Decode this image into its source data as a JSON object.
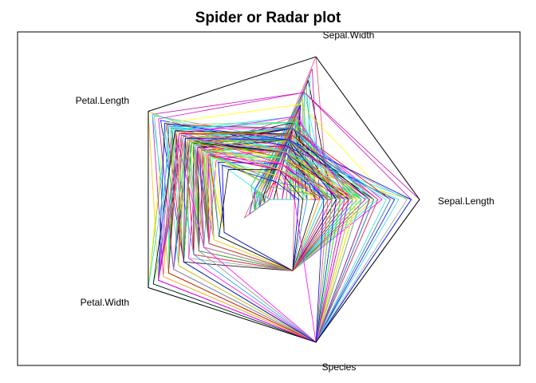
{
  "chart_data": {
    "type": "radar",
    "title": "Spider or Radar plot",
    "axes": [
      "Sepal.Length",
      "Sepal.Width",
      "Petal.Length",
      "Petal.Width",
      "Species"
    ],
    "scale": "each variable scaled from its minimum (center) to its maximum (outer pentagon)",
    "frame": true,
    "palette": [
      "#000000",
      "#DF536B",
      "#61D04F",
      "#2297E6",
      "#28E2E5",
      "#CD0BBC",
      "#F5C710",
      "#9E9E9E",
      "#FF00FF",
      "#0000FF",
      "#00FFFF",
      "#FFFF00",
      "#00FF00",
      "#FF0000"
    ],
    "series": [
      {
        "values": [
          5.1,
          3.5,
          1.4,
          0.2,
          1
        ]
      },
      {
        "values": [
          4.9,
          3.0,
          1.4,
          0.2,
          1
        ]
      },
      {
        "values": [
          4.7,
          3.2,
          1.3,
          0.2,
          1
        ]
      },
      {
        "values": [
          4.6,
          3.1,
          1.5,
          0.2,
          1
        ]
      },
      {
        "values": [
          5.0,
          3.6,
          1.4,
          0.2,
          1
        ]
      },
      {
        "values": [
          5.4,
          3.9,
          1.7,
          0.4,
          1
        ]
      },
      {
        "values": [
          4.6,
          3.4,
          1.4,
          0.3,
          1
        ]
      },
      {
        "values": [
          5.0,
          3.4,
          1.5,
          0.2,
          1
        ]
      },
      {
        "values": [
          4.4,
          2.9,
          1.4,
          0.2,
          1
        ]
      },
      {
        "values": [
          4.9,
          3.1,
          1.5,
          0.1,
          1
        ]
      },
      {
        "values": [
          5.4,
          3.7,
          1.5,
          0.2,
          1
        ]
      },
      {
        "values": [
          4.8,
          3.4,
          1.6,
          0.2,
          1
        ]
      },
      {
        "values": [
          4.8,
          3.0,
          1.4,
          0.1,
          1
        ]
      },
      {
        "values": [
          4.3,
          3.0,
          1.1,
          0.1,
          1
        ]
      },
      {
        "values": [
          5.8,
          4.0,
          1.2,
          0.2,
          1
        ]
      },
      {
        "values": [
          5.7,
          4.4,
          1.5,
          0.4,
          1
        ]
      },
      {
        "values": [
          5.4,
          3.9,
          1.3,
          0.4,
          1
        ]
      },
      {
        "values": [
          5.1,
          3.5,
          1.4,
          0.3,
          1
        ]
      },
      {
        "values": [
          5.7,
          3.8,
          1.7,
          0.3,
          1
        ]
      },
      {
        "values": [
          5.1,
          3.8,
          1.5,
          0.3,
          1
        ]
      },
      {
        "values": [
          5.4,
          3.4,
          1.7,
          0.2,
          1
        ]
      },
      {
        "values": [
          5.1,
          3.7,
          1.5,
          0.4,
          1
        ]
      },
      {
        "values": [
          4.6,
          3.6,
          1.0,
          0.2,
          1
        ]
      },
      {
        "values": [
          5.1,
          3.3,
          1.7,
          0.5,
          1
        ]
      },
      {
        "values": [
          4.8,
          3.4,
          1.9,
          0.2,
          1
        ]
      },
      {
        "values": [
          5.0,
          3.0,
          1.6,
          0.2,
          1
        ]
      },
      {
        "values": [
          5.0,
          3.4,
          1.6,
          0.4,
          1
        ]
      },
      {
        "values": [
          5.2,
          3.5,
          1.5,
          0.2,
          1
        ]
      },
      {
        "values": [
          5.2,
          3.4,
          1.4,
          0.2,
          1
        ]
      },
      {
        "values": [
          4.7,
          3.2,
          1.6,
          0.2,
          1
        ]
      },
      {
        "values": [
          4.8,
          3.1,
          1.6,
          0.2,
          1
        ]
      },
      {
        "values": [
          5.4,
          3.4,
          1.5,
          0.4,
          1
        ]
      },
      {
        "values": [
          5.2,
          4.1,
          1.5,
          0.1,
          1
        ]
      },
      {
        "values": [
          5.5,
          4.2,
          1.4,
          0.2,
          1
        ]
      },
      {
        "values": [
          4.9,
          3.1,
          1.5,
          0.2,
          1
        ]
      },
      {
        "values": [
          5.0,
          3.2,
          1.2,
          0.2,
          1
        ]
      },
      {
        "values": [
          5.5,
          3.5,
          1.3,
          0.2,
          1
        ]
      },
      {
        "values": [
          4.9,
          3.6,
          1.4,
          0.1,
          1
        ]
      },
      {
        "values": [
          4.4,
          3.0,
          1.3,
          0.2,
          1
        ]
      },
      {
        "values": [
          5.1,
          3.4,
          1.5,
          0.2,
          1
        ]
      },
      {
        "values": [
          5.0,
          3.5,
          1.3,
          0.3,
          1
        ]
      },
      {
        "values": [
          4.5,
          2.3,
          1.3,
          0.3,
          1
        ]
      },
      {
        "values": [
          4.4,
          3.2,
          1.3,
          0.2,
          1
        ]
      },
      {
        "values": [
          5.0,
          3.5,
          1.6,
          0.6,
          1
        ]
      },
      {
        "values": [
          5.1,
          3.8,
          1.9,
          0.4,
          1
        ]
      },
      {
        "values": [
          4.8,
          3.0,
          1.4,
          0.3,
          1
        ]
      },
      {
        "values": [
          5.1,
          3.8,
          1.6,
          0.2,
          1
        ]
      },
      {
        "values": [
          4.6,
          3.2,
          1.4,
          0.2,
          1
        ]
      },
      {
        "values": [
          5.3,
          3.7,
          1.5,
          0.2,
          1
        ]
      },
      {
        "values": [
          5.0,
          3.3,
          1.4,
          0.2,
          1
        ]
      },
      {
        "values": [
          7.0,
          3.2,
          4.7,
          1.4,
          2
        ]
      },
      {
        "values": [
          6.4,
          3.2,
          4.5,
          1.5,
          2
        ]
      },
      {
        "values": [
          6.9,
          3.1,
          4.9,
          1.5,
          2
        ]
      },
      {
        "values": [
          5.5,
          2.3,
          4.0,
          1.3,
          2
        ]
      },
      {
        "values": [
          6.5,
          2.8,
          4.6,
          1.5,
          2
        ]
      },
      {
        "values": [
          5.7,
          2.8,
          4.5,
          1.3,
          2
        ]
      },
      {
        "values": [
          6.3,
          3.3,
          4.7,
          1.6,
          2
        ]
      },
      {
        "values": [
          4.9,
          2.4,
          3.3,
          1.0,
          2
        ]
      },
      {
        "values": [
          6.6,
          2.9,
          4.6,
          1.3,
          2
        ]
      },
      {
        "values": [
          5.2,
          2.7,
          3.9,
          1.4,
          2
        ]
      },
      {
        "values": [
          5.0,
          2.0,
          3.5,
          1.0,
          2
        ]
      },
      {
        "values": [
          5.9,
          3.0,
          4.2,
          1.5,
          2
        ]
      },
      {
        "values": [
          6.0,
          2.2,
          4.0,
          1.0,
          2
        ]
      },
      {
        "values": [
          6.1,
          2.9,
          4.7,
          1.4,
          2
        ]
      },
      {
        "values": [
          5.6,
          2.9,
          3.6,
          1.3,
          2
        ]
      },
      {
        "values": [
          6.7,
          3.1,
          4.4,
          1.4,
          2
        ]
      },
      {
        "values": [
          5.6,
          3.0,
          4.5,
          1.5,
          2
        ]
      },
      {
        "values": [
          5.8,
          2.7,
          4.1,
          1.0,
          2
        ]
      },
      {
        "values": [
          6.2,
          2.2,
          4.5,
          1.5,
          2
        ]
      },
      {
        "values": [
          5.6,
          2.5,
          3.9,
          1.1,
          2
        ]
      },
      {
        "values": [
          5.9,
          3.2,
          4.8,
          1.8,
          2
        ]
      },
      {
        "values": [
          6.1,
          2.8,
          4.0,
          1.3,
          2
        ]
      },
      {
        "values": [
          6.3,
          2.5,
          4.9,
          1.5,
          2
        ]
      },
      {
        "values": [
          6.1,
          2.8,
          4.7,
          1.2,
          2
        ]
      },
      {
        "values": [
          6.4,
          2.9,
          4.3,
          1.3,
          2
        ]
      },
      {
        "values": [
          6.6,
          3.0,
          4.4,
          1.4,
          2
        ]
      },
      {
        "values": [
          6.8,
          2.8,
          4.8,
          1.4,
          2
        ]
      },
      {
        "values": [
          6.7,
          3.0,
          5.0,
          1.7,
          2
        ]
      },
      {
        "values": [
          6.0,
          2.9,
          4.5,
          1.5,
          2
        ]
      },
      {
        "values": [
          5.7,
          2.6,
          3.5,
          1.0,
          2
        ]
      },
      {
        "values": [
          5.5,
          2.4,
          3.8,
          1.1,
          2
        ]
      },
      {
        "values": [
          5.5,
          2.4,
          3.7,
          1.0,
          2
        ]
      },
      {
        "values": [
          5.8,
          2.7,
          3.9,
          1.2,
          2
        ]
      },
      {
        "values": [
          6.0,
          2.7,
          5.1,
          1.6,
          2
        ]
      },
      {
        "values": [
          5.4,
          3.0,
          4.5,
          1.5,
          2
        ]
      },
      {
        "values": [
          6.0,
          3.4,
          4.5,
          1.6,
          2
        ]
      },
      {
        "values": [
          6.7,
          3.1,
          4.7,
          1.5,
          2
        ]
      },
      {
        "values": [
          6.3,
          2.3,
          4.4,
          1.3,
          2
        ]
      },
      {
        "values": [
          5.6,
          3.0,
          4.1,
          1.3,
          2
        ]
      },
      {
        "values": [
          5.5,
          2.5,
          4.0,
          1.3,
          2
        ]
      },
      {
        "values": [
          5.5,
          2.6,
          4.4,
          1.2,
          2
        ]
      },
      {
        "values": [
          6.1,
          3.0,
          4.6,
          1.4,
          2
        ]
      },
      {
        "values": [
          5.8,
          2.6,
          4.0,
          1.2,
          2
        ]
      },
      {
        "values": [
          5.0,
          2.3,
          3.3,
          1.0,
          2
        ]
      },
      {
        "values": [
          5.6,
          2.7,
          4.2,
          1.3,
          2
        ]
      },
      {
        "values": [
          5.7,
          3.0,
          4.2,
          1.2,
          2
        ]
      },
      {
        "values": [
          5.7,
          2.9,
          4.2,
          1.3,
          2
        ]
      },
      {
        "values": [
          6.2,
          2.9,
          4.3,
          1.3,
          2
        ]
      },
      {
        "values": [
          5.1,
          2.5,
          3.0,
          1.1,
          2
        ]
      },
      {
        "values": [
          5.7,
          2.8,
          4.1,
          1.3,
          2
        ]
      },
      {
        "values": [
          6.3,
          3.3,
          6.0,
          2.5,
          3
        ]
      },
      {
        "values": [
          5.8,
          2.7,
          5.1,
          1.9,
          3
        ]
      },
      {
        "values": [
          7.1,
          3.0,
          5.9,
          2.1,
          3
        ]
      },
      {
        "values": [
          6.3,
          2.9,
          5.6,
          1.8,
          3
        ]
      },
      {
        "values": [
          6.5,
          3.0,
          5.8,
          2.2,
          3
        ]
      },
      {
        "values": [
          7.6,
          3.0,
          6.6,
          2.1,
          3
        ]
      },
      {
        "values": [
          4.9,
          2.5,
          4.5,
          1.7,
          3
        ]
      },
      {
        "values": [
          7.3,
          2.9,
          6.3,
          1.8,
          3
        ]
      },
      {
        "values": [
          6.7,
          2.5,
          5.8,
          1.8,
          3
        ]
      },
      {
        "values": [
          7.2,
          3.6,
          6.1,
          2.5,
          3
        ]
      },
      {
        "values": [
          6.5,
          3.2,
          5.1,
          2.0,
          3
        ]
      },
      {
        "values": [
          6.4,
          2.7,
          5.3,
          1.9,
          3
        ]
      },
      {
        "values": [
          6.8,
          3.0,
          5.5,
          2.1,
          3
        ]
      },
      {
        "values": [
          5.7,
          2.5,
          5.0,
          2.0,
          3
        ]
      },
      {
        "values": [
          5.8,
          2.8,
          5.1,
          2.4,
          3
        ]
      },
      {
        "values": [
          6.4,
          3.2,
          5.3,
          2.3,
          3
        ]
      },
      {
        "values": [
          6.5,
          3.0,
          5.5,
          1.8,
          3
        ]
      },
      {
        "values": [
          7.7,
          3.8,
          6.7,
          2.2,
          3
        ]
      },
      {
        "values": [
          7.7,
          2.6,
          6.9,
          2.3,
          3
        ]
      },
      {
        "values": [
          6.0,
          2.2,
          5.0,
          1.5,
          3
        ]
      },
      {
        "values": [
          6.9,
          3.2,
          5.7,
          2.3,
          3
        ]
      },
      {
        "values": [
          5.6,
          2.8,
          4.9,
          2.0,
          3
        ]
      },
      {
        "values": [
          7.7,
          2.8,
          6.7,
          2.0,
          3
        ]
      },
      {
        "values": [
          6.3,
          2.7,
          4.9,
          1.8,
          3
        ]
      },
      {
        "values": [
          6.7,
          3.3,
          5.7,
          2.1,
          3
        ]
      },
      {
        "values": [
          7.2,
          3.2,
          6.0,
          1.8,
          3
        ]
      },
      {
        "values": [
          6.2,
          2.8,
          4.8,
          1.8,
          3
        ]
      },
      {
        "values": [
          6.1,
          3.0,
          4.9,
          1.8,
          3
        ]
      },
      {
        "values": [
          6.4,
          2.8,
          5.6,
          2.1,
          3
        ]
      },
      {
        "values": [
          7.2,
          3.0,
          5.8,
          1.6,
          3
        ]
      },
      {
        "values": [
          7.4,
          2.8,
          6.1,
          1.9,
          3
        ]
      },
      {
        "values": [
          7.9,
          3.8,
          6.4,
          2.0,
          3
        ]
      },
      {
        "values": [
          6.4,
          2.8,
          5.6,
          2.2,
          3
        ]
      },
      {
        "values": [
          6.3,
          2.8,
          5.1,
          1.5,
          3
        ]
      },
      {
        "values": [
          6.1,
          2.6,
          5.6,
          1.4,
          3
        ]
      },
      {
        "values": [
          7.7,
          3.0,
          6.1,
          2.3,
          3
        ]
      },
      {
        "values": [
          6.3,
          3.4,
          5.6,
          2.4,
          3
        ]
      },
      {
        "values": [
          6.4,
          3.1,
          5.5,
          1.8,
          3
        ]
      },
      {
        "values": [
          6.0,
          3.0,
          4.8,
          1.8,
          3
        ]
      },
      {
        "values": [
          6.9,
          3.1,
          5.4,
          2.1,
          3
        ]
      },
      {
        "values": [
          6.7,
          3.1,
          5.6,
          2.4,
          3
        ]
      },
      {
        "values": [
          6.9,
          3.1,
          5.1,
          2.3,
          3
        ]
      },
      {
        "values": [
          5.8,
          2.7,
          5.1,
          1.9,
          3
        ]
      },
      {
        "values": [
          6.8,
          3.2,
          5.9,
          2.3,
          3
        ]
      },
      {
        "values": [
          6.7,
          3.3,
          5.7,
          2.5,
          3
        ]
      },
      {
        "values": [
          6.7,
          3.0,
          5.2,
          2.3,
          3
        ]
      },
      {
        "values": [
          6.3,
          2.5,
          5.0,
          1.9,
          3
        ]
      },
      {
        "values": [
          6.5,
          3.0,
          5.2,
          2.0,
          3
        ]
      },
      {
        "values": [
          6.2,
          3.4,
          5.4,
          2.3,
          3
        ]
      },
      {
        "values": [
          5.9,
          3.0,
          5.1,
          1.8,
          3
        ]
      }
    ]
  }
}
